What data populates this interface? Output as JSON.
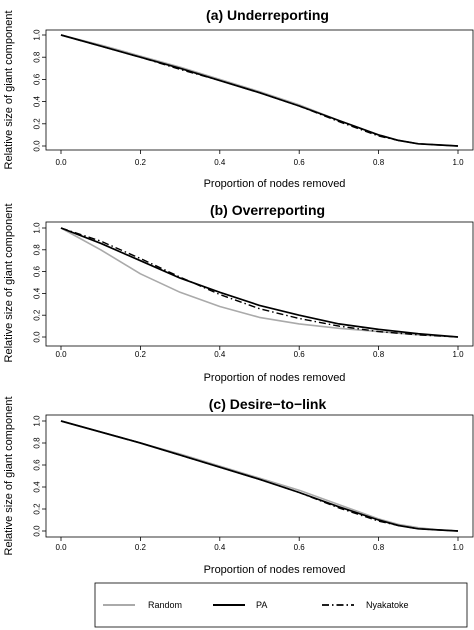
{
  "chart_data": [
    {
      "type": "line",
      "title": "(a) Underreporting",
      "xlabel": "Proportion of nodes removed",
      "ylabel": "Relative size of giant component",
      "xlim": [
        0,
        1
      ],
      "ylim": [
        0,
        1
      ],
      "xticks": [
        "0.0",
        "0.2",
        "0.4",
        "0.6",
        "0.8",
        "1.0"
      ],
      "yticks": [
        "0.0",
        "0.2",
        "0.4",
        "0.6",
        "0.8",
        "1.0"
      ],
      "x": [
        0,
        0.1,
        0.2,
        0.3,
        0.4,
        0.5,
        0.6,
        0.7,
        0.8,
        0.85,
        0.9,
        0.95,
        1.0
      ],
      "series": [
        {
          "name": "Random",
          "values": [
            1.0,
            0.91,
            0.81,
            0.71,
            0.6,
            0.49,
            0.37,
            0.23,
            0.1,
            0.05,
            0.02,
            0.01,
            0.0
          ]
        },
        {
          "name": "PA",
          "values": [
            1.0,
            0.9,
            0.8,
            0.7,
            0.59,
            0.48,
            0.36,
            0.23,
            0.1,
            0.05,
            0.02,
            0.01,
            0.0
          ]
        },
        {
          "name": "Nyakatoke",
          "values": [
            1.0,
            0.9,
            0.8,
            0.69,
            0.59,
            0.48,
            0.36,
            0.22,
            0.09,
            0.05,
            0.02,
            0.01,
            0.0
          ]
        }
      ]
    },
    {
      "type": "line",
      "title": "(b) Overreporting",
      "xlabel": "Proportion of nodes removed",
      "ylabel": "Relative size of giant component",
      "xlim": [
        0,
        1
      ],
      "ylim": [
        0,
        1
      ],
      "xticks": [
        "0.0",
        "0.2",
        "0.4",
        "0.6",
        "0.8",
        "1.0"
      ],
      "yticks": [
        "0.0",
        "0.2",
        "0.4",
        "0.6",
        "0.8",
        "1.0"
      ],
      "x": [
        0,
        0.1,
        0.2,
        0.3,
        0.4,
        0.5,
        0.6,
        0.7,
        0.8,
        0.9,
        1.0
      ],
      "series": [
        {
          "name": "Random",
          "values": [
            1.0,
            0.8,
            0.58,
            0.41,
            0.28,
            0.18,
            0.12,
            0.08,
            0.05,
            0.02,
            0.0
          ]
        },
        {
          "name": "PA",
          "values": [
            1.0,
            0.86,
            0.7,
            0.54,
            0.41,
            0.29,
            0.2,
            0.12,
            0.07,
            0.03,
            0.0
          ]
        },
        {
          "name": "Nyakatoke",
          "values": [
            1.0,
            0.88,
            0.72,
            0.55,
            0.39,
            0.26,
            0.17,
            0.1,
            0.05,
            0.02,
            0.0
          ]
        }
      ]
    },
    {
      "type": "line",
      "title": "(c) Desire−to−link",
      "xlabel": "Proportion of nodes removed",
      "ylabel": "Relative size of giant component",
      "xlim": [
        0,
        1
      ],
      "ylim": [
        0,
        1
      ],
      "xticks": [
        "0.0",
        "0.2",
        "0.4",
        "0.6",
        "0.8",
        "1.0"
      ],
      "yticks": [
        "0.0",
        "0.2",
        "0.4",
        "0.6",
        "0.8",
        "1.0"
      ],
      "x": [
        0,
        0.1,
        0.2,
        0.3,
        0.4,
        0.5,
        0.6,
        0.7,
        0.8,
        0.85,
        0.9,
        0.95,
        1.0
      ],
      "series": [
        {
          "name": "Random",
          "values": [
            1.0,
            0.9,
            0.8,
            0.7,
            0.59,
            0.48,
            0.37,
            0.24,
            0.11,
            0.06,
            0.03,
            0.01,
            0.0
          ]
        },
        {
          "name": "PA",
          "values": [
            1.0,
            0.9,
            0.8,
            0.69,
            0.58,
            0.47,
            0.35,
            0.22,
            0.1,
            0.05,
            0.02,
            0.01,
            0.0
          ]
        },
        {
          "name": "Nyakatoke",
          "values": [
            1.0,
            0.9,
            0.8,
            0.69,
            0.58,
            0.47,
            0.35,
            0.21,
            0.09,
            0.05,
            0.02,
            0.01,
            0.0
          ]
        }
      ]
    }
  ],
  "legend": {
    "items": [
      {
        "label": "Random",
        "color": "#aaaaaa",
        "style": "solid"
      },
      {
        "label": "PA",
        "color": "#000000",
        "style": "solid"
      },
      {
        "label": "Nyakatoke",
        "color": "#000000",
        "style": "dashdot"
      }
    ]
  }
}
